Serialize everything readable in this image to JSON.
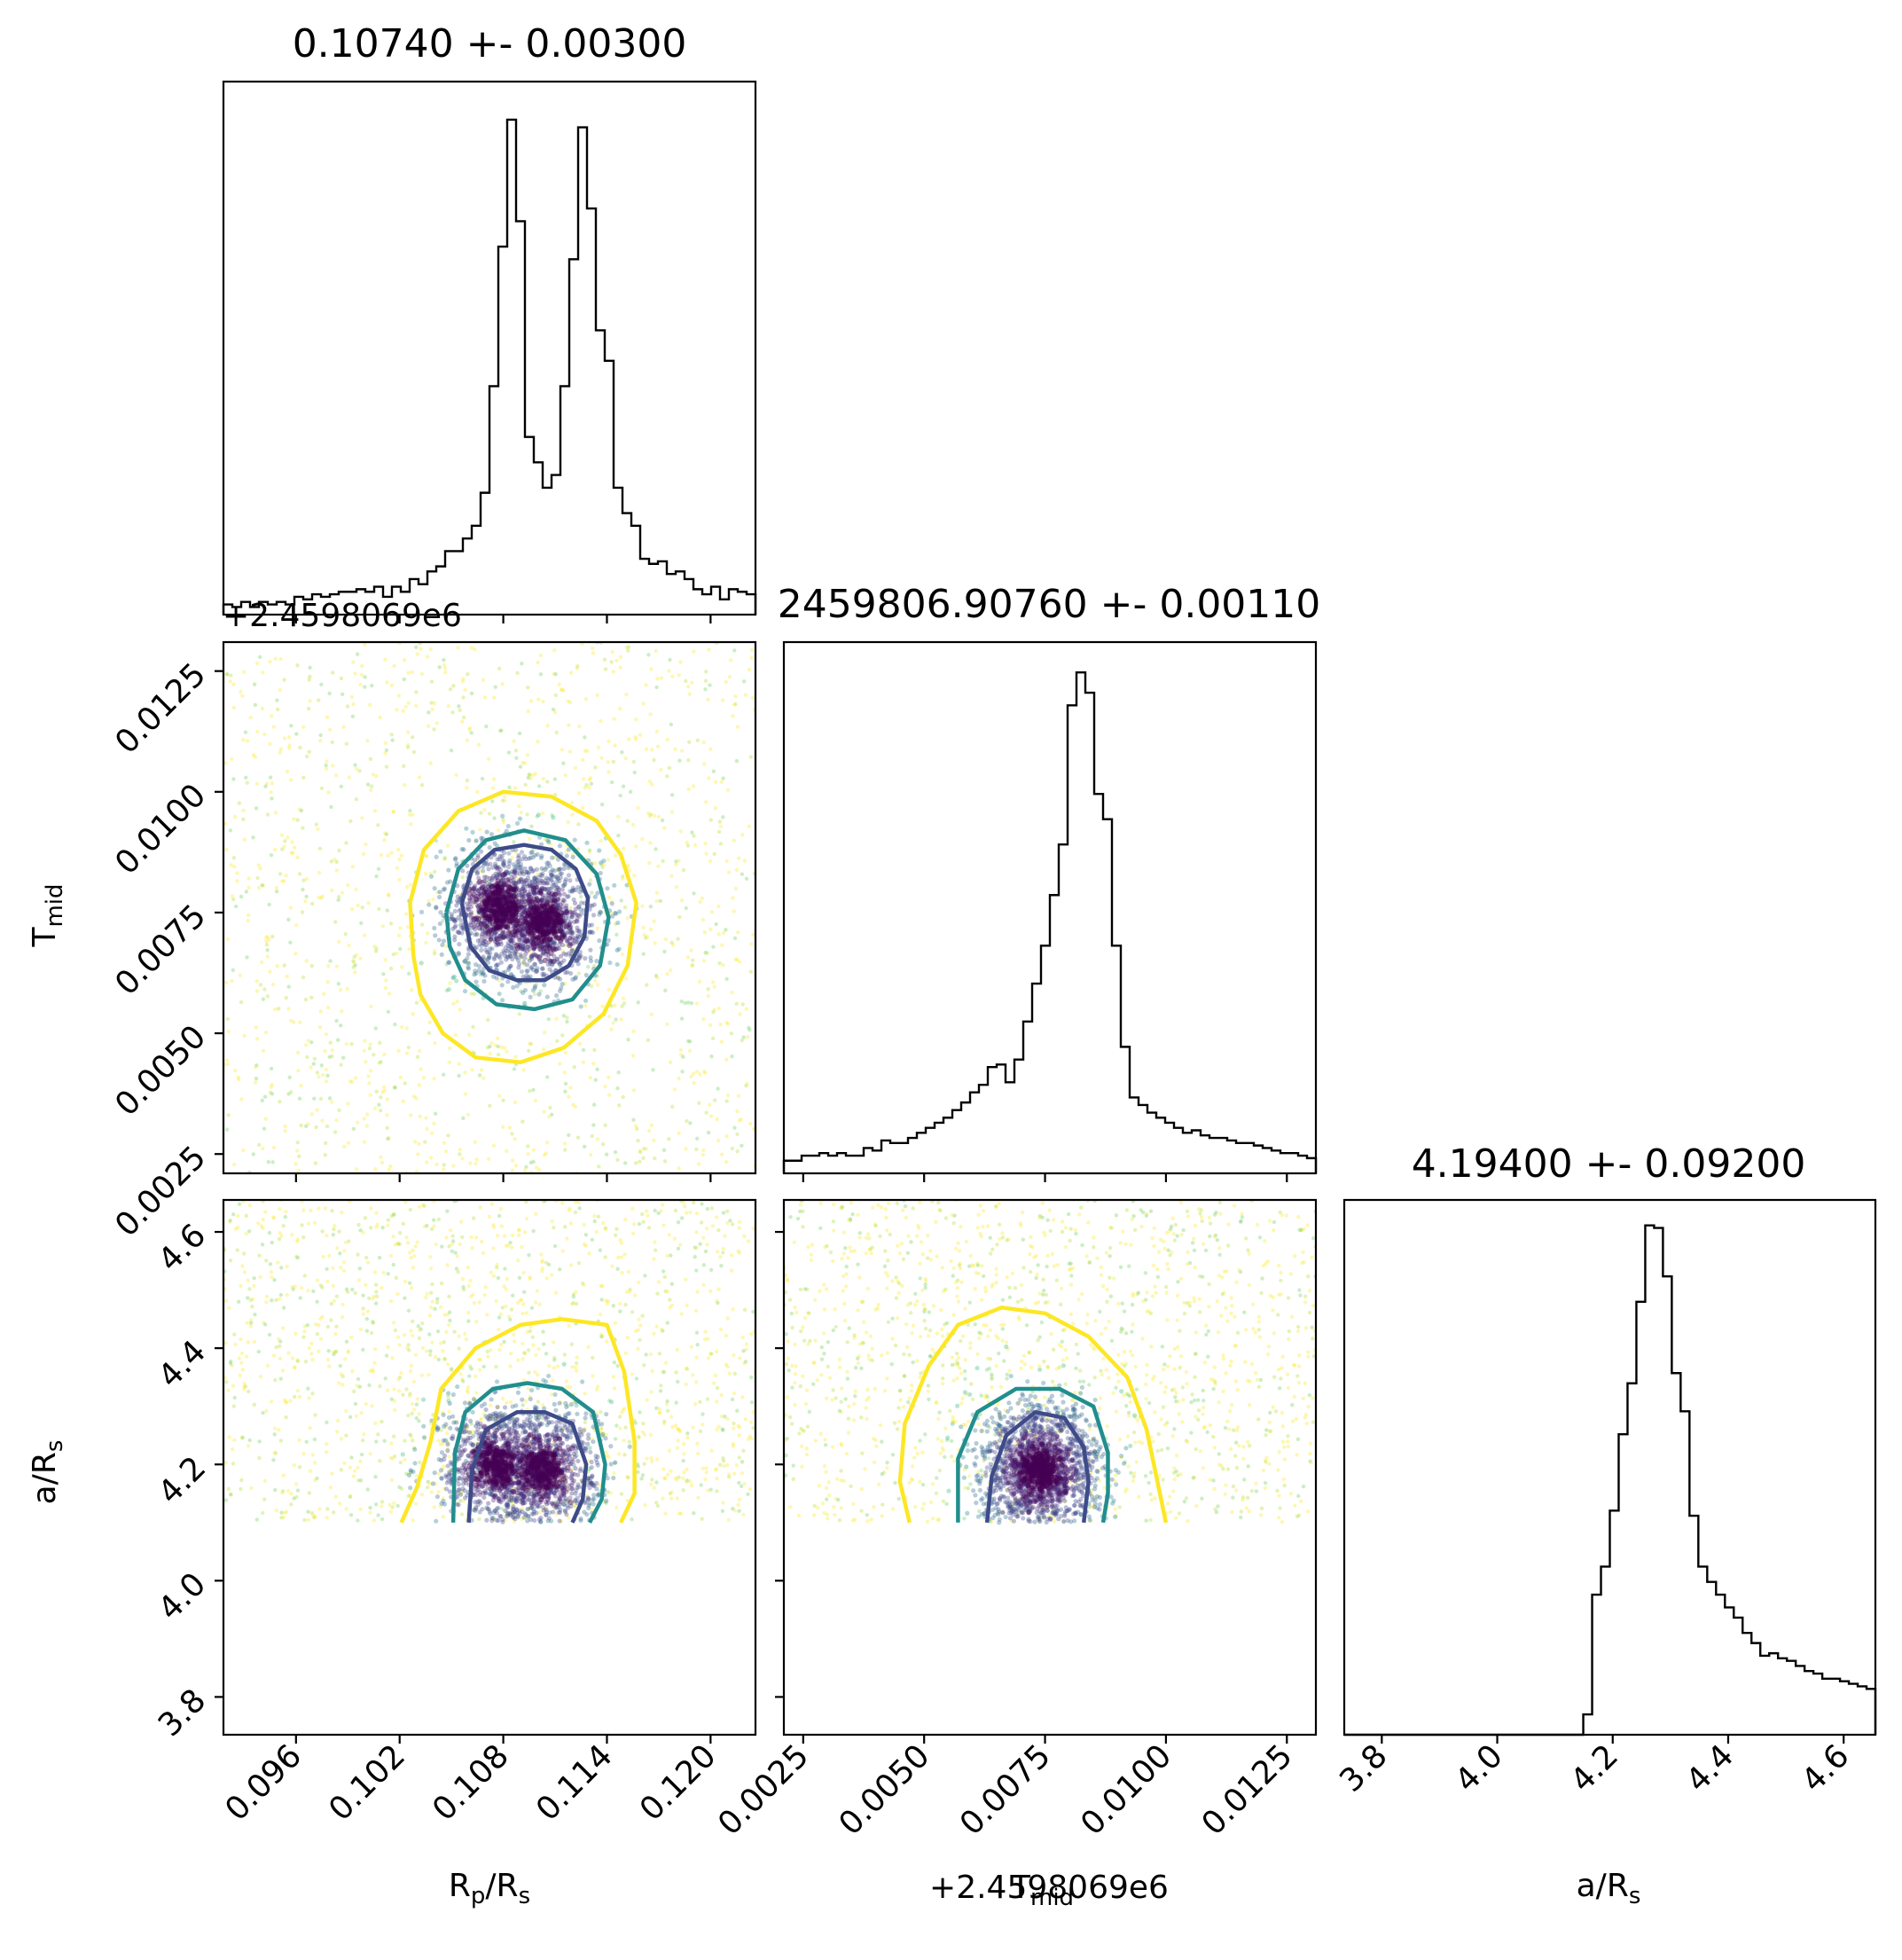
{
  "chart_data": {
    "type": "corner",
    "parameters": [
      {
        "key": "rprs",
        "label": "R_p/R_s",
        "label_main": "R",
        "label_sub1": "p",
        "label_mid": "/R",
        "label_sub2": "s",
        "range": [
          0.0918,
          0.1226
        ],
        "ticks": [
          0.096,
          0.102,
          0.108,
          0.114,
          0.12
        ],
        "tick_labels": [
          "0.096",
          "0.102",
          "0.108",
          "0.114",
          "0.120"
        ]
      },
      {
        "key": "tmid",
        "label": "T_mid",
        "label_main": "T",
        "label_sub1": "mid",
        "range": [
          0.0021,
          0.0131
        ],
        "ticks": [
          0.0025,
          0.005,
          0.0075,
          0.01,
          0.0125
        ],
        "tick_labels": [
          "0.0025",
          "0.0050",
          "0.0075",
          "0.0100",
          "0.0125"
        ],
        "offset_text": "+2.4598069e6"
      },
      {
        "key": "ars",
        "label": "a/R_s",
        "label_main": "a/R",
        "label_sub1": "s",
        "range": [
          3.735,
          4.655
        ],
        "ticks": [
          3.8,
          4.0,
          4.2,
          4.4,
          4.6
        ],
        "tick_labels": [
          "3.8",
          "4.0",
          "4.2",
          "4.4",
          "4.6"
        ]
      }
    ],
    "titles": [
      "0.10740 +- 0.00300",
      "2459806.90760 +- 0.00110",
      "4.19400 +- 0.09200"
    ],
    "histograms": [
      {
        "param": "rprs",
        "bins": 60,
        "heights": [
          4,
          3,
          5,
          3,
          5,
          4,
          5,
          4,
          7,
          6,
          8,
          7,
          8,
          9,
          9,
          10,
          9,
          11,
          7,
          11,
          9,
          14,
          12,
          17,
          19,
          25,
          25,
          30,
          35,
          48,
          90,
          145,
          195,
          155,
          70,
          60,
          50,
          55,
          90,
          140,
          192,
          160,
          112,
          100,
          50,
          40,
          35,
          22,
          20,
          21,
          16,
          17,
          14,
          10,
          8,
          11,
          6,
          10,
          9,
          8
        ],
        "max": 200
      },
      {
        "param": "tmid",
        "bins": 60,
        "heights": [
          5,
          5,
          7,
          7,
          8,
          7,
          8,
          7,
          7,
          10,
          9,
          13,
          12,
          12,
          14,
          16,
          18,
          20,
          22,
          25,
          28,
          32,
          35,
          42,
          43,
          36,
          45,
          60,
          75,
          90,
          110,
          130,
          185,
          198,
          190,
          150,
          140,
          90,
          50,
          30,
          27,
          24,
          22,
          20,
          18,
          16,
          17,
          15,
          14,
          14,
          13,
          12,
          12,
          11,
          10,
          9,
          8,
          8,
          7,
          6
        ],
        "max": 200
      },
      {
        "param": "ars",
        "bins": 60,
        "heights": [
          0,
          0,
          0,
          0,
          0,
          0,
          0,
          0,
          0,
          0,
          0,
          0,
          0,
          0,
          0,
          0,
          0,
          0,
          0,
          0,
          0,
          0,
          0,
          0,
          0,
          0,
          0,
          8,
          55,
          66,
          88,
          118,
          138,
          170,
          200,
          199,
          180,
          142,
          127,
          86,
          66,
          60,
          55,
          50,
          46,
          40,
          36,
          31,
          32,
          30,
          29,
          27,
          25,
          24,
          22,
          22,
          21,
          20,
          19,
          18
        ],
        "max": 200
      }
    ],
    "contour_levels": [
      "0.39",
      "0.86",
      "0.99"
    ],
    "contours": [
      {
        "x": "rprs",
        "y": "tmid",
        "levels": [
          {
            "level": "0.39",
            "color": "#3e4b89",
            "points": [
              [
                0.1056,
                0.0077
              ],
              [
                0.1062,
                0.0084
              ],
              [
                0.1075,
                0.0088
              ],
              [
                0.1092,
                0.0089
              ],
              [
                0.1108,
                0.0088
              ],
              [
                0.1122,
                0.0084
              ],
              [
                0.1129,
                0.0078
              ],
              [
                0.1127,
                0.007
              ],
              [
                0.1118,
                0.0064
              ],
              [
                0.1104,
                0.0061
              ],
              [
                0.1088,
                0.0061
              ],
              [
                0.1072,
                0.0063
              ],
              [
                0.1061,
                0.0068
              ],
              [
                0.1056,
                0.0077
              ]
            ]
          },
          {
            "level": "0.86",
            "color": "#218e8d",
            "points": [
              [
                0.1047,
                0.0075
              ],
              [
                0.1054,
                0.0084
              ],
              [
                0.107,
                0.009
              ],
              [
                0.1092,
                0.0092
              ],
              [
                0.1116,
                0.009
              ],
              [
                0.1134,
                0.0083
              ],
              [
                0.1141,
                0.0074
              ],
              [
                0.1136,
                0.0064
              ],
              [
                0.112,
                0.0057
              ],
              [
                0.1098,
                0.0055
              ],
              [
                0.1076,
                0.0056
              ],
              [
                0.1058,
                0.0061
              ],
              [
                0.1049,
                0.0068
              ],
              [
                0.1047,
                0.0075
              ]
            ]
          },
          {
            "level": "0.99",
            "color": "#fde725",
            "points": [
              [
                0.1026,
                0.0077
              ],
              [
                0.1034,
                0.0088
              ],
              [
                0.1054,
                0.0096
              ],
              [
                0.108,
                0.01
              ],
              [
                0.1108,
                0.0099
              ],
              [
                0.1134,
                0.0094
              ],
              [
                0.1148,
                0.0087
              ],
              [
                0.1157,
                0.0077
              ],
              [
                0.1152,
                0.0064
              ],
              [
                0.1138,
                0.0054
              ],
              [
                0.1115,
                0.0047
              ],
              [
                0.109,
                0.0044
              ],
              [
                0.1064,
                0.0045
              ],
              [
                0.1045,
                0.005
              ],
              [
                0.1032,
                0.0058
              ],
              [
                0.1028,
                0.0066
              ],
              [
                0.1026,
                0.0077
              ]
            ]
          }
        ]
      },
      {
        "x": "rprs",
        "y": "ars",
        "levels": [
          {
            "level": "0.39",
            "color": "#3e4b89",
            "points": [
              [
                0.106,
                4.1
              ],
              [
                0.1062,
                4.19
              ],
              [
                0.107,
                4.26
              ],
              [
                0.1088,
                4.29
              ],
              [
                0.1104,
                4.29
              ],
              [
                0.112,
                4.27
              ],
              [
                0.1128,
                4.2
              ],
              [
                0.1126,
                4.14
              ],
              [
                0.112,
                4.1
              ]
            ]
          },
          {
            "level": "0.86",
            "color": "#218e8d",
            "points": [
              [
                0.1051,
                4.1
              ],
              [
                0.1052,
                4.22
              ],
              [
                0.1058,
                4.29
              ],
              [
                0.1074,
                4.33
              ],
              [
                0.1094,
                4.34
              ],
              [
                0.1114,
                4.33
              ],
              [
                0.1132,
                4.29
              ],
              [
                0.1139,
                4.2
              ],
              [
                0.1137,
                4.14
              ],
              [
                0.113,
                4.1
              ]
            ]
          },
          {
            "level": "0.99",
            "color": "#fde725",
            "points": [
              [
                0.1021,
                4.1
              ],
              [
                0.103,
                4.16
              ],
              [
                0.1038,
                4.24
              ],
              [
                0.1044,
                4.33
              ],
              [
                0.1064,
                4.4
              ],
              [
                0.109,
                4.44
              ],
              [
                0.1114,
                4.45
              ],
              [
                0.114,
                4.44
              ],
              [
                0.115,
                4.36
              ],
              [
                0.1156,
                4.24
              ],
              [
                0.1156,
                4.15
              ],
              [
                0.1148,
                4.1
              ]
            ]
          }
        ]
      },
      {
        "x": "tmid",
        "y": "ars",
        "levels": [
          {
            "level": "0.39",
            "color": "#3e4b89",
            "points": [
              [
                0.0063,
                4.1
              ],
              [
                0.0064,
                4.18
              ],
              [
                0.0067,
                4.25
              ],
              [
                0.0073,
                4.29
              ],
              [
                0.0079,
                4.28
              ],
              [
                0.0083,
                4.23
              ],
              [
                0.0084,
                4.17
              ],
              [
                0.0083,
                4.1
              ]
            ]
          },
          {
            "level": "0.86",
            "color": "#218e8d",
            "points": [
              [
                0.0057,
                4.1
              ],
              [
                0.0057,
                4.21
              ],
              [
                0.0061,
                4.29
              ],
              [
                0.0069,
                4.33
              ],
              [
                0.0078,
                4.33
              ],
              [
                0.0085,
                4.3
              ],
              [
                0.0088,
                4.22
              ],
              [
                0.0088,
                4.15
              ],
              [
                0.0087,
                4.1
              ]
            ]
          },
          {
            "level": "0.99",
            "color": "#fde725",
            "points": [
              [
                0.0047,
                4.1
              ],
              [
                0.0045,
                4.17
              ],
              [
                0.0046,
                4.27
              ],
              [
                0.0051,
                4.37
              ],
              [
                0.0057,
                4.44
              ],
              [
                0.0066,
                4.47
              ],
              [
                0.0075,
                4.46
              ],
              [
                0.0084,
                4.42
              ],
              [
                0.0092,
                4.35
              ],
              [
                0.0096,
                4.26
              ],
              [
                0.0098,
                4.18
              ],
              [
                0.01,
                4.1
              ]
            ]
          }
        ]
      }
    ],
    "scatter": [
      {
        "x": "rprs",
        "y": "tmid",
        "n_outer": 1400,
        "n_inner": 1800,
        "clusters": [
          [
            0.1078,
            0.0076
          ],
          [
            0.1103,
            0.0073
          ]
        ]
      },
      {
        "x": "rprs",
        "y": "ars",
        "n_outer": 1400,
        "n_inner": 1800,
        "clusters": [
          [
            0.1076,
            4.2
          ],
          [
            0.1103,
            4.19
          ]
        ]
      },
      {
        "x": "tmid",
        "y": "ars",
        "n_outer": 1400,
        "n_inner": 1800,
        "clusters": [
          [
            0.0074,
            4.19
          ]
        ]
      }
    ],
    "ars_min": 4.1,
    "colormap": "viridis"
  }
}
